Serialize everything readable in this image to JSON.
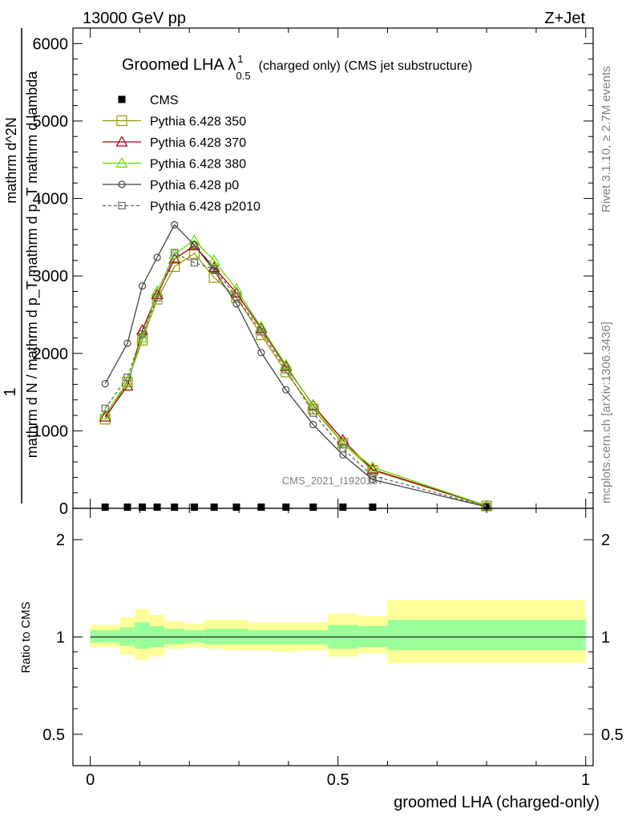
{
  "header": {
    "left": "13000 GeV pp",
    "right": "Z+Jet"
  },
  "side": {
    "rivet": "Rivet 3.1.10, ≥ 2.7M events",
    "mcplots": "mcplots.cern.ch [arXiv:1306.3436]"
  },
  "title": {
    "main": "Groomed LHA ",
    "lambda": "λ",
    "sup": "1",
    "sub": "0.5",
    "rest": "(charged only) (CMS jet substructure)"
  },
  "watermark": "CMS_2021_I1920187",
  "ylabel_main": {
    "one": "1",
    "den": "mathrm d N / mathrm d p_T mathrm d p_T mathrm d lambda",
    "num": "mathrm d^2N"
  },
  "ylabel_ratio": "Ratio to CMS",
  "xlabel": "groomed LHA (charged-only)",
  "colors": {
    "cms": "#000000",
    "p350": "#999900",
    "p370": "#a00000",
    "p380": "#66dd00",
    "p0": "#444444",
    "p2010": "#666666",
    "band_inner": "#99ff99",
    "band_outer": "#ffff99"
  },
  "chart_data": {
    "type": "line",
    "x": [
      0.03,
      0.075,
      0.105,
      0.135,
      0.17,
      0.21,
      0.25,
      0.295,
      0.345,
      0.395,
      0.45,
      0.51,
      0.57,
      0.8
    ],
    "xlim": [
      -0.035,
      1.015
    ],
    "ylim": [
      0,
      6200
    ],
    "yticks": [
      0,
      1000,
      2000,
      3000,
      4000,
      5000,
      6000
    ],
    "ytick_labels": [
      "0",
      "1000",
      "2000",
      "3000",
      "4000",
      "5000",
      "6000"
    ],
    "xticks": [
      0,
      0.5,
      1
    ],
    "xtick_labels": [
      "0",
      "0.5",
      "1"
    ],
    "ratio_ylim": [
      0.4,
      2.5
    ],
    "ratio_yticks": [
      0.5,
      1,
      2
    ],
    "ratio_ytick_labels": [
      "0.5",
      "1",
      "2"
    ],
    "series": [
      {
        "name": "CMS",
        "key": "cms",
        "marker": "square-filled",
        "line": "none",
        "values": [
          15,
          15,
          15,
          15,
          15,
          15,
          15,
          15,
          15,
          15,
          15,
          15,
          15,
          15
        ]
      },
      {
        "name": "Pythia 6.428 350",
        "key": "p350",
        "marker": "square-open",
        "line": "solid",
        "values": [
          1150,
          1630,
          2170,
          2700,
          3120,
          3290,
          2980,
          2720,
          2240,
          1760,
          1280,
          840,
          490,
          30
        ]
      },
      {
        "name": "Pythia 6.428 370",
        "key": "p370",
        "marker": "triangle-open",
        "line": "solid",
        "values": [
          1180,
          1580,
          2300,
          2760,
          3220,
          3390,
          3110,
          2780,
          2320,
          1830,
          1330,
          880,
          500,
          35
        ]
      },
      {
        "name": "Pythia 6.428 380",
        "key": "p380",
        "marker": "triangle-open",
        "line": "solid",
        "values": [
          1210,
          1630,
          2200,
          2800,
          3280,
          3460,
          3200,
          2830,
          2340,
          1850,
          1320,
          840,
          530,
          35
        ]
      },
      {
        "name": "Pythia 6.428 p0",
        "key": "p0",
        "marker": "circle-open",
        "line": "solid",
        "values": [
          1610,
          2130,
          2870,
          3240,
          3660,
          3400,
          3070,
          2640,
          2010,
          1530,
          1080,
          690,
          370,
          20
        ]
      },
      {
        "name": "Pythia 6.428 p2010",
        "key": "p2010",
        "marker": "square-small-open",
        "line": "dashed",
        "values": [
          1290,
          1690,
          2250,
          2720,
          3300,
          3170,
          3090,
          2730,
          2280,
          1790,
          1230,
          770,
          420,
          25
        ]
      }
    ],
    "ratio_bands": {
      "edges": [
        0,
        0.06,
        0.09,
        0.12,
        0.15,
        0.19,
        0.23,
        0.27,
        0.32,
        0.37,
        0.42,
        0.48,
        0.54,
        0.6,
        1
      ],
      "inner": [
        [
          0.96,
          1.05
        ],
        [
          0.94,
          1.07
        ],
        [
          0.92,
          1.11
        ],
        [
          0.93,
          1.08
        ],
        [
          0.95,
          1.06
        ],
        [
          0.96,
          1.05
        ],
        [
          0.95,
          1.06
        ],
        [
          0.95,
          1.06
        ],
        [
          0.95,
          1.05
        ],
        [
          0.95,
          1.05
        ],
        [
          0.95,
          1.05
        ],
        [
          0.92,
          1.09
        ],
        [
          0.93,
          1.08
        ],
        [
          0.91,
          1.13
        ]
      ],
      "outer": [
        [
          0.93,
          1.09
        ],
        [
          0.88,
          1.15
        ],
        [
          0.85,
          1.22
        ],
        [
          0.87,
          1.17
        ],
        [
          0.92,
          1.12
        ],
        [
          0.93,
          1.1
        ],
        [
          0.92,
          1.13
        ],
        [
          0.91,
          1.13
        ],
        [
          0.91,
          1.11
        ],
        [
          0.9,
          1.11
        ],
        [
          0.91,
          1.11
        ],
        [
          0.87,
          1.18
        ],
        [
          0.89,
          1.16
        ],
        [
          0.83,
          1.3
        ]
      ]
    }
  }
}
